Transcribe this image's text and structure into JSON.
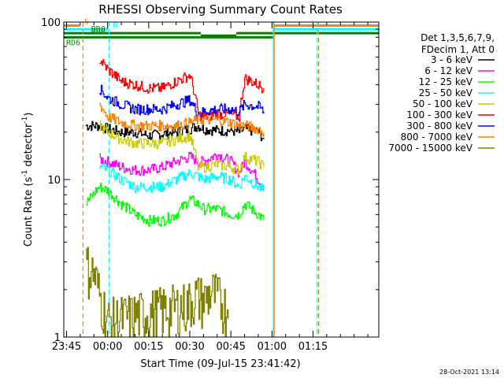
{
  "chart_data": {
    "type": "line",
    "title": "RHESSI Observing Summary Count Rates",
    "xlabel": "Start Time (09-Jul-15 23:41:42)",
    "ylabel_main": "Count Rate (s",
    "ylabel_sup1": "-1",
    "ylabel_mid": " detector",
    "ylabel_sup2": "-1",
    "ylabel_end": ")",
    "yscale": "log",
    "ylim": [
      1,
      100
    ],
    "xlim_minutes": [
      -16.0,
      99.0
    ],
    "x_tick_labels": [
      "23:45",
      "00:00",
      "00:15",
      "00:30",
      "00:45",
      "01:00",
      "01:15"
    ],
    "x_tick_minutes": [
      -15,
      0,
      15,
      30,
      45,
      60,
      75
    ],
    "y_tick_labels": [
      "1",
      "10",
      "100"
    ],
    "y_tick_values": [
      1,
      10,
      100
    ],
    "legend_header": [
      "Det 1,3,5,6,7,9,",
      "FDecim 1, Att 0"
    ],
    "legend_placement": "right",
    "series": [
      {
        "name": "3 - 6 keV",
        "color": "#000000",
        "x": [
          -8,
          -3,
          0,
          5,
          10,
          15,
          20,
          25,
          30,
          33,
          35,
          40,
          45,
          48,
          50,
          55,
          57
        ],
        "y": [
          22,
          22,
          21,
          20,
          20,
          19,
          19.5,
          20,
          21,
          22,
          21,
          20.5,
          20.5,
          20,
          21,
          20,
          18
        ]
      },
      {
        "name": "6 - 12 keV",
        "color": "#ff00ff",
        "x": [
          -3,
          0,
          5,
          10,
          15,
          20,
          25,
          30,
          33,
          35,
          40,
          45,
          48,
          50,
          55,
          57
        ],
        "y": [
          13.5,
          13,
          12,
          11.5,
          11.5,
          12,
          13,
          14,
          13,
          13,
          14.5,
          13,
          11,
          13,
          10,
          9
        ]
      },
      {
        "name": "12 - 25 keV",
        "color": "#00ff00",
        "x": [
          -8,
          -3,
          0,
          5,
          10,
          15,
          20,
          25,
          30,
          33,
          35,
          40,
          45,
          48,
          50,
          55,
          57
        ],
        "y": [
          7,
          9,
          8.5,
          7,
          6,
          5.5,
          5.5,
          6,
          7.5,
          7,
          6.5,
          6.5,
          6,
          6,
          7,
          6,
          5.5
        ]
      },
      {
        "name": "25 - 50 keV",
        "color": "#00ffff",
        "x": [
          -3,
          0,
          5,
          10,
          15,
          20,
          25,
          30,
          33,
          35,
          40,
          45,
          48,
          50,
          55,
          57
        ],
        "y": [
          12,
          11.5,
          10,
          9,
          9,
          9,
          10,
          11,
          10.5,
          10,
          10.5,
          10,
          9,
          10.5,
          9,
          8.5
        ]
      },
      {
        "name": "50 - 100 keV",
        "color": "#cccc00",
        "x": [
          -3,
          0,
          5,
          10,
          15,
          20,
          25,
          30,
          33,
          35,
          40,
          45,
          48,
          50,
          55,
          57
        ],
        "y": [
          22,
          20,
          18,
          17,
          17,
          17,
          18,
          19,
          12,
          12,
          12.5,
          12,
          11.5,
          14,
          13,
          12
        ]
      },
      {
        "name": "100 - 300 keV",
        "color": "#ff0000",
        "x": [
          -3,
          0,
          5,
          10,
          15,
          20,
          25,
          30,
          33,
          35,
          40,
          45,
          48,
          50,
          55,
          57
        ],
        "y": [
          58,
          50,
          42,
          40,
          38,
          38,
          42,
          46,
          26,
          25,
          26,
          26,
          25,
          44,
          40,
          38
        ]
      },
      {
        "name": "300 - 800 keV",
        "color": "#0000ff",
        "x": [
          -3,
          0,
          5,
          10,
          15,
          20,
          25,
          30,
          33,
          35,
          40,
          45,
          48,
          50,
          55,
          57
        ],
        "y": [
          38,
          33,
          30,
          28,
          28,
          28,
          30,
          32,
          26,
          27,
          28,
          28,
          27,
          30,
          29,
          27
        ]
      },
      {
        "name": "800 - 7000 keV",
        "color": "#ff8000",
        "x": [
          -3,
          0,
          5,
          10,
          15,
          20,
          25,
          30,
          33,
          35,
          40,
          45,
          48,
          50,
          55,
          57
        ],
        "y": [
          30,
          25,
          23,
          22,
          22,
          22,
          22,
          23,
          24,
          24,
          24,
          23,
          22,
          22,
          21,
          20
        ]
      },
      {
        "name": "7000 - 15000 keV",
        "color": "#808000",
        "x": [
          -8,
          -5,
          -3,
          0,
          29,
          32,
          35,
          38,
          41,
          44
        ],
        "y": [
          2.5,
          2.2,
          1.6,
          1.1,
          1.4,
          1.6,
          1.5,
          1.7,
          1.5,
          1.3
        ]
      }
    ],
    "flags": [
      {
        "label": "S",
        "color": "#ff8000",
        "x_start": -16,
        "x_end": -10,
        "y": 95
      },
      {
        "label": "S",
        "color": "#ff8000",
        "x_start": 60.5,
        "x_end": 99,
        "y": 95
      },
      {
        "label": "N",
        "color": "#00ffff",
        "x_start": -16,
        "x_end": 0.5,
        "y": 90
      },
      {
        "label": "N",
        "color": "#00ffff",
        "x_start": 60.5,
        "x_end": 99,
        "y": 90
      },
      {
        "label": "RD0",
        "color": "#008000",
        "x_start": -16,
        "x_end": 34,
        "y": 85
      },
      {
        "label": "RD0",
        "color": "#008000",
        "x_start": 34,
        "x_end": 47,
        "y": 82
      },
      {
        "label": "RD0",
        "color": "#008000",
        "x_start": 47,
        "x_end": 99,
        "y": 85
      },
      {
        "label": "RD6",
        "color": "#008000",
        "x_start": -16,
        "x_end": 60.5,
        "y": 80
      }
    ],
    "vlines": [
      {
        "x": -9,
        "color": "#ff8000",
        "style": "dashed"
      },
      {
        "x": 0.5,
        "color": "#00ffff",
        "style": "dashed"
      },
      {
        "x": 60.5,
        "color": "#00ffff",
        "style": "solid"
      },
      {
        "x": 60.8,
        "color": "#ff8000",
        "style": "solid"
      },
      {
        "x": 76.5,
        "color": "#00ffff",
        "style": "dashed"
      },
      {
        "x": 77,
        "color": "#ff8000",
        "style": "dashed"
      }
    ],
    "timestamp": "28-Oct-2021 13:14"
  }
}
